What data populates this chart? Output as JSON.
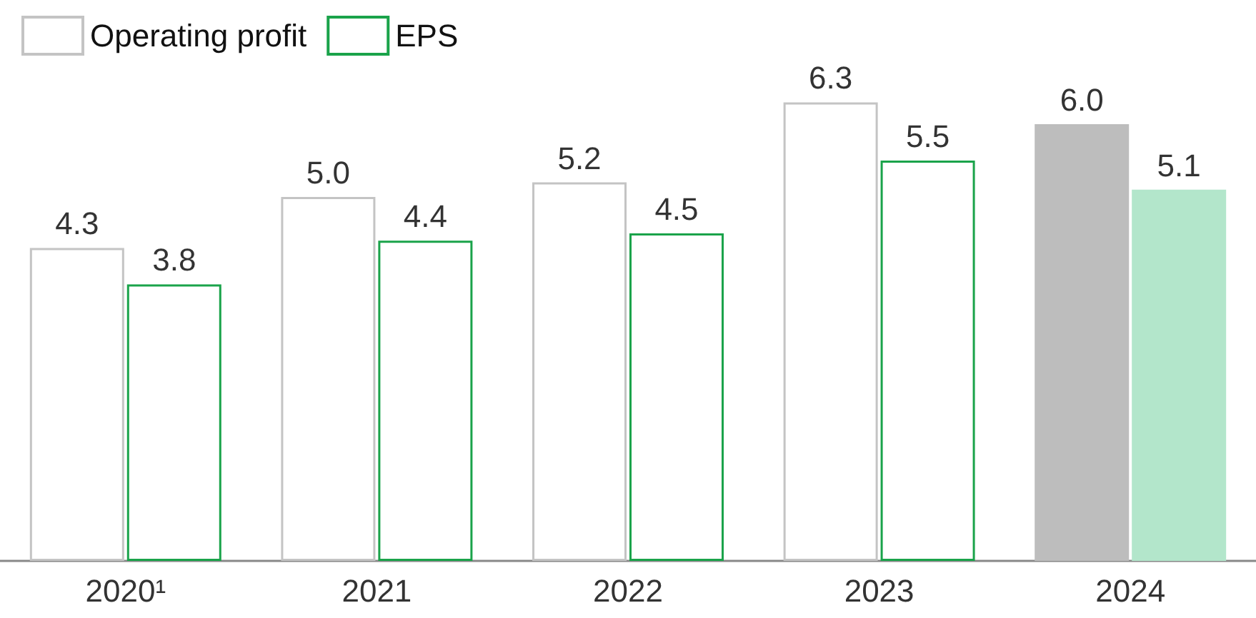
{
  "chart_data": {
    "type": "bar",
    "categories": [
      "2020¹",
      "2021",
      "2022",
      "2023",
      "2024"
    ],
    "series": [
      {
        "name": "Operating profit",
        "color": "#c4c4c4",
        "colors": [
          "#ffffff",
          "#ffffff",
          "#ffffff",
          "#ffffff",
          "#bdbdbd"
        ],
        "values": [
          4.3,
          5.0,
          5.2,
          6.3,
          6.0
        ],
        "value_labels": [
          "4.3",
          "5.0",
          "5.2",
          "6.3",
          "6.0"
        ]
      },
      {
        "name": "EPS",
        "color": "#1aa34a",
        "colors": [
          "#ffffff",
          "#ffffff",
          "#ffffff",
          "#ffffff",
          "#b3e6cb"
        ],
        "values": [
          3.8,
          4.4,
          4.5,
          5.5,
          5.1
        ],
        "value_labels": [
          "3.8",
          "4.4",
          "4.5",
          "5.5",
          "5.1"
        ]
      }
    ],
    "legend": "top left"
  }
}
